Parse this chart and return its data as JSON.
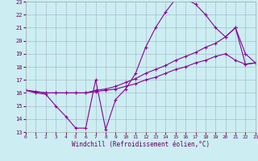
{
  "xlabel": "Windchill (Refroidissement éolien,°C)",
  "bg_color": "#cceef2",
  "grid_color": "#aabbcc",
  "line_color": "#880099",
  "xlim": [
    0,
    23
  ],
  "ylim": [
    13,
    23
  ],
  "xticks": [
    0,
    1,
    2,
    3,
    4,
    5,
    6,
    7,
    8,
    9,
    10,
    11,
    12,
    13,
    14,
    15,
    16,
    17,
    18,
    19,
    20,
    21,
    22,
    23
  ],
  "yticks": [
    13,
    14,
    15,
    16,
    17,
    18,
    19,
    20,
    21,
    22,
    23
  ],
  "curve1_x": [
    0,
    1,
    2,
    3,
    4,
    5,
    6,
    7,
    8,
    9,
    10,
    11,
    12,
    13,
    14,
    15,
    16,
    17,
    18,
    19,
    20,
    21,
    22,
    23
  ],
  "curve1_y": [
    16.2,
    16.0,
    15.9,
    15.0,
    14.2,
    13.3,
    13.3,
    17.0,
    13.2,
    15.5,
    16.3,
    17.5,
    19.5,
    21.0,
    22.2,
    23.2,
    23.2,
    22.8,
    22.0,
    21.0,
    20.3,
    21.0,
    18.2,
    18.3
  ],
  "curve2_x": [
    0,
    1,
    2,
    3,
    4,
    5,
    6,
    7,
    8,
    9,
    10,
    11,
    12,
    13,
    14,
    15,
    16,
    17,
    18,
    19,
    20,
    21,
    22,
    23
  ],
  "curve2_y": [
    16.2,
    16.1,
    16.0,
    16.0,
    16.0,
    16.0,
    16.0,
    16.2,
    16.3,
    16.5,
    16.8,
    17.1,
    17.5,
    17.8,
    18.1,
    18.5,
    18.8,
    19.1,
    19.5,
    19.8,
    20.3,
    21.0,
    19.0,
    18.3
  ],
  "curve3_x": [
    0,
    1,
    2,
    3,
    4,
    5,
    6,
    7,
    8,
    9,
    10,
    11,
    12,
    13,
    14,
    15,
    16,
    17,
    18,
    19,
    20,
    21,
    22,
    23
  ],
  "curve3_y": [
    16.2,
    16.1,
    16.0,
    16.0,
    16.0,
    16.0,
    16.0,
    16.1,
    16.2,
    16.3,
    16.5,
    16.7,
    17.0,
    17.2,
    17.5,
    17.8,
    18.0,
    18.3,
    18.5,
    18.8,
    19.0,
    18.5,
    18.2,
    18.3
  ]
}
